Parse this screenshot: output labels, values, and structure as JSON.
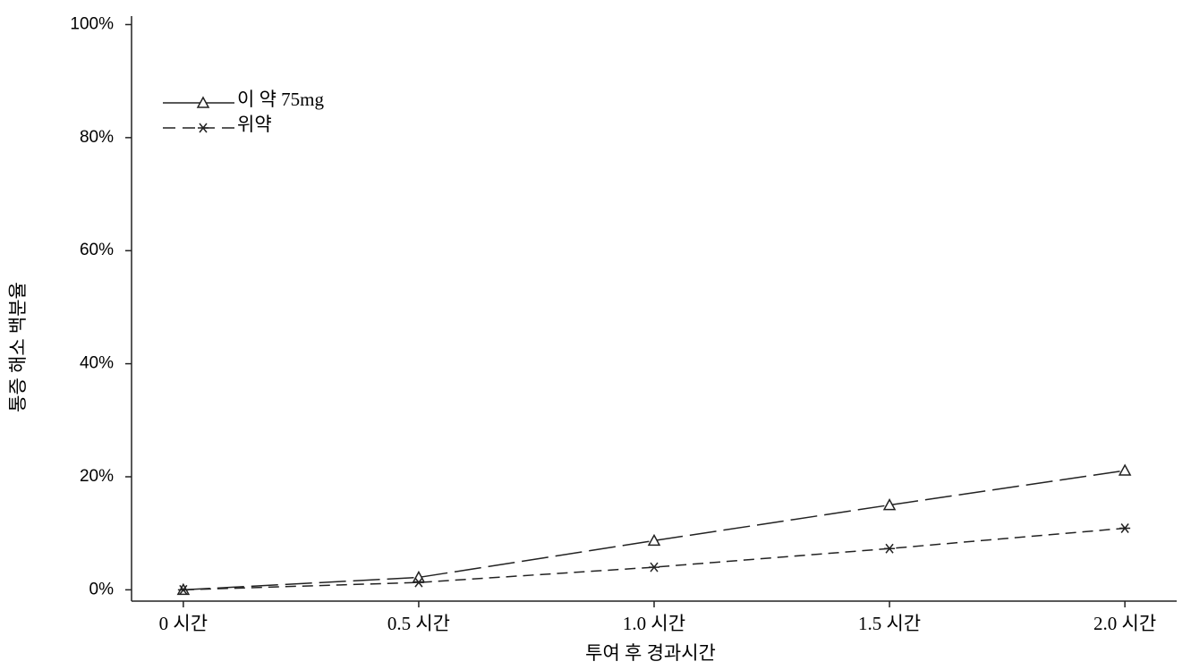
{
  "chart_data": {
    "type": "line",
    "x_label": "투여 후 경과시간",
    "y_label": "통증 해소 백분율",
    "categories": [
      "0 시간",
      "0.5 시간",
      "1.0 시간",
      "1.5 시간",
      "2.0 시간"
    ],
    "series": [
      {
        "name": "이 약 75mg",
        "color": "#222222",
        "marker": "triangle",
        "line_style": "longdash",
        "values": [
          0,
          2.2,
          8.7,
          15.0,
          21.1
        ]
      },
      {
        "name": "위약",
        "color": "#222222",
        "marker": "asterisk",
        "line_style": "dash",
        "values": [
          0,
          1.3,
          4.0,
          7.3,
          10.9
        ]
      }
    ],
    "ylim": [
      -2,
      101.5
    ],
    "yticks": [
      {
        "value": 0,
        "label": "0%"
      },
      {
        "value": 20,
        "label": "20%"
      },
      {
        "value": 40,
        "label": "40%"
      },
      {
        "value": 60,
        "label": "60%"
      },
      {
        "value": 80,
        "label": "80%"
      },
      {
        "value": 100,
        "label": "100%"
      }
    ],
    "legend": "upper-left"
  }
}
